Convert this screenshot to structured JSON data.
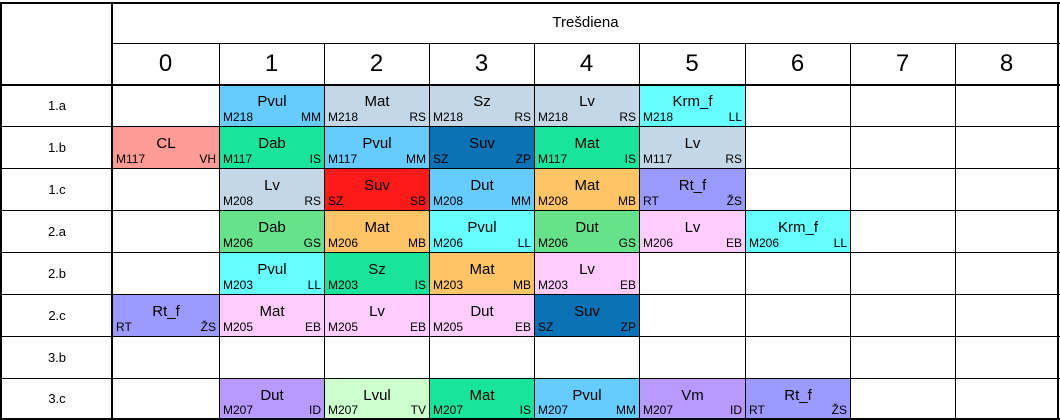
{
  "day": "Trešdiena",
  "periods": [
    "0",
    "1",
    "2",
    "3",
    "4",
    "5",
    "6",
    "7",
    "8"
  ],
  "classes": [
    "1.a",
    "1.b",
    "1.c",
    "2.a",
    "2.b",
    "2.c",
    "3.b",
    "3.c"
  ],
  "schedule": [
    [
      null,
      {
        "subject": "Pvul",
        "room": "M218",
        "teacher": "MM",
        "color": "#66ccff"
      },
      {
        "subject": "Mat",
        "room": "M218",
        "teacher": "RS",
        "color": "#c4d7e6"
      },
      {
        "subject": "Sz",
        "room": "M218",
        "teacher": "RS",
        "color": "#c4d7e6"
      },
      {
        "subject": "Lv",
        "room": "M218",
        "teacher": "RS",
        "color": "#c4d7e6"
      },
      {
        "subject": "Krm_f",
        "room": "M218",
        "teacher": "LL",
        "color": "#66ffff"
      },
      null,
      null,
      null
    ],
    [
      {
        "subject": "CL",
        "room": "M117",
        "teacher": "VH",
        "color": "#ff9b95"
      },
      {
        "subject": "Dab",
        "room": "M117",
        "teacher": "IS",
        "color": "#19e49b"
      },
      {
        "subject": "Pvul",
        "room": "M117",
        "teacher": "MM",
        "color": "#66ccff"
      },
      {
        "subject": "Suv",
        "room": "SZ",
        "teacher": "ZP",
        "color": "#0b72b5"
      },
      {
        "subject": "Mat",
        "room": "M117",
        "teacher": "IS",
        "color": "#19e49b"
      },
      {
        "subject": "Lv",
        "room": "M117",
        "teacher": "RS",
        "color": "#c4d7e6"
      },
      null,
      null,
      null
    ],
    [
      null,
      {
        "subject": "Lv",
        "room": "M208",
        "teacher": "RS",
        "color": "#c4d7e6"
      },
      {
        "subject": "Suv",
        "room": "SZ",
        "teacher": "SB",
        "color": "#ff1a1a"
      },
      {
        "subject": "Dut",
        "room": "M208",
        "teacher": "MM",
        "color": "#66ccff"
      },
      {
        "subject": "Mat",
        "room": "M208",
        "teacher": "MB",
        "color": "#ffc466"
      },
      {
        "subject": "Rt_f",
        "room": "RT",
        "teacher": "ŽS",
        "color": "#9a9aff"
      },
      null,
      null,
      null
    ],
    [
      null,
      {
        "subject": "Dab",
        "room": "M206",
        "teacher": "GS",
        "color": "#66e28a"
      },
      {
        "subject": "Mat",
        "room": "M206",
        "teacher": "MB",
        "color": "#ffc466"
      },
      {
        "subject": "Pvul",
        "room": "M206",
        "teacher": "LL",
        "color": "#66ffff"
      },
      {
        "subject": "Dut",
        "room": "M206",
        "teacher": "GS",
        "color": "#66e28a"
      },
      {
        "subject": "Lv",
        "room": "M206",
        "teacher": "EB",
        "color": "#ffccff"
      },
      {
        "subject": "Krm_f",
        "room": "M206",
        "teacher": "LL",
        "color": "#66ffff"
      },
      null,
      null
    ],
    [
      null,
      {
        "subject": "Pvul",
        "room": "M203",
        "teacher": "LL",
        "color": "#66ffff"
      },
      {
        "subject": "Sz",
        "room": "M203",
        "teacher": "IS",
        "color": "#19e49b"
      },
      {
        "subject": "Mat",
        "room": "M203",
        "teacher": "MB",
        "color": "#ffc466"
      },
      {
        "subject": "Lv",
        "room": "M203",
        "teacher": "EB",
        "color": "#ffccff"
      },
      null,
      null,
      null,
      null
    ],
    [
      {
        "subject": "Rt_f",
        "room": "RT",
        "teacher": "ŽS",
        "color": "#9a9aff"
      },
      {
        "subject": "Mat",
        "room": "M205",
        "teacher": "EB",
        "color": "#ffccff"
      },
      {
        "subject": "Lv",
        "room": "M205",
        "teacher": "EB",
        "color": "#ffccff"
      },
      {
        "subject": "Dut",
        "room": "M205",
        "teacher": "EB",
        "color": "#ffccff"
      },
      {
        "subject": "Suv",
        "room": "SZ",
        "teacher": "ZP",
        "color": "#0b72b5"
      },
      null,
      null,
      null,
      null
    ],
    [
      null,
      null,
      null,
      null,
      null,
      null,
      null,
      null,
      null
    ],
    [
      null,
      {
        "subject": "Dut",
        "room": "M207",
        "teacher": "ID",
        "color": "#b899ff"
      },
      {
        "subject": "Lvul",
        "room": "M207",
        "teacher": "TV",
        "color": "#ccffcc"
      },
      {
        "subject": "Mat",
        "room": "M207",
        "teacher": "IS",
        "color": "#19e49b"
      },
      {
        "subject": "Pvul",
        "room": "M207",
        "teacher": "MM",
        "color": "#66ccff"
      },
      {
        "subject": "Vm",
        "room": "M207",
        "teacher": "ID",
        "color": "#b899ff"
      },
      {
        "subject": "Rt_f",
        "room": "RT",
        "teacher": "ŽS",
        "color": "#9a9aff"
      },
      null,
      null
    ]
  ]
}
